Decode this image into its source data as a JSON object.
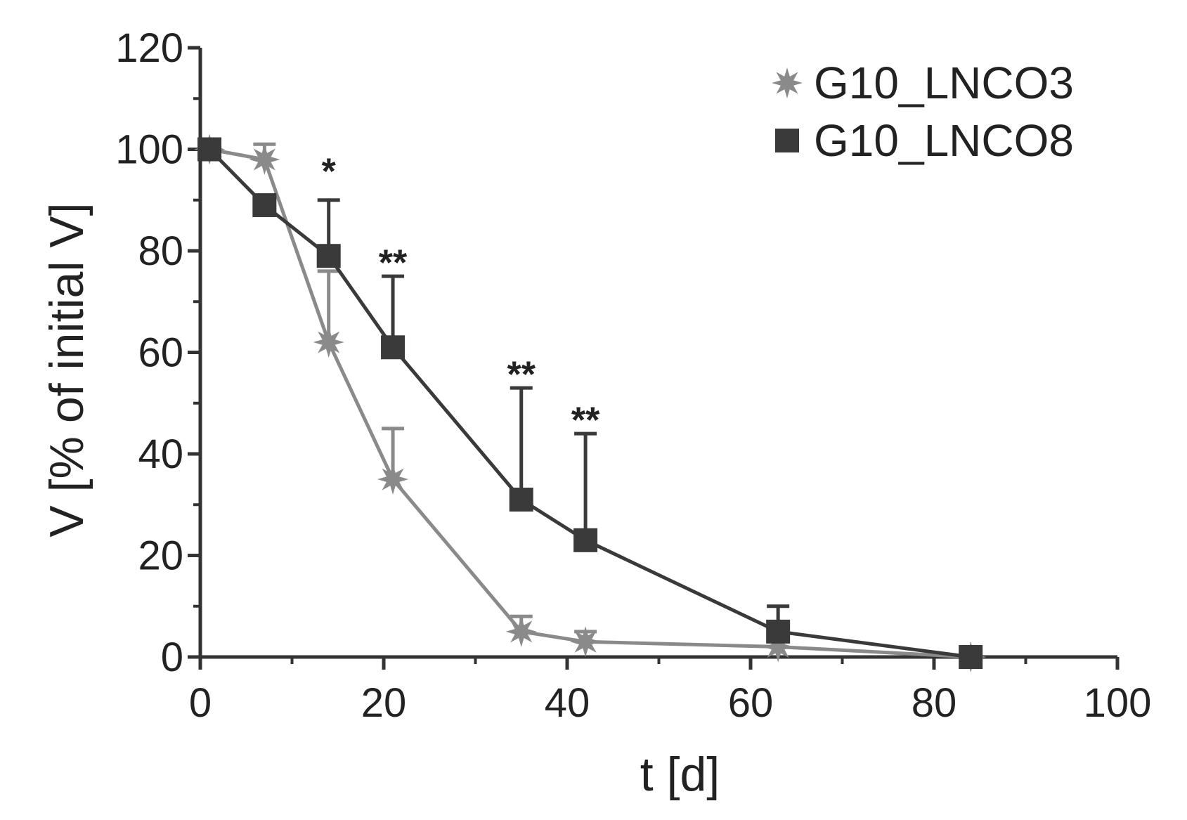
{
  "chart_data": {
    "type": "line",
    "xlabel": "t [d]",
    "ylabel": "V [% of initial V]",
    "xlim": [
      0,
      100
    ],
    "ylim": [
      0,
      120
    ],
    "xticks": [
      "0",
      "20",
      "40",
      "60",
      "80",
      "100"
    ],
    "yticks": [
      "0",
      "20",
      "40",
      "60",
      "80",
      "100",
      "120"
    ],
    "grid": false,
    "legend_position": "top-right",
    "series": [
      {
        "name": "G10_LNCO3",
        "marker": "star",
        "color": "#8a8a8a",
        "x": [
          1,
          7,
          14,
          21,
          35,
          42,
          63,
          84
        ],
        "y": [
          100,
          98,
          62,
          35,
          5,
          3,
          2,
          0
        ],
        "error": [
          0,
          3,
          14,
          10,
          3,
          2,
          2,
          0
        ]
      },
      {
        "name": "G10_LNCO8",
        "marker": "square",
        "color": "#3a3a3a",
        "x": [
          1,
          7,
          14,
          21,
          35,
          42,
          63,
          84
        ],
        "y": [
          100,
          89,
          79,
          61,
          31,
          23,
          5,
          0
        ],
        "error": [
          0,
          0,
          11,
          14,
          22,
          21,
          5,
          0
        ]
      }
    ],
    "annotations": [
      {
        "text": "*",
        "x": 14,
        "y": 96
      },
      {
        "text": "**",
        "x": 21,
        "y": 78
      },
      {
        "text": "**",
        "x": 35,
        "y": 56
      },
      {
        "text": "**",
        "x": 42,
        "y": 47
      }
    ]
  }
}
